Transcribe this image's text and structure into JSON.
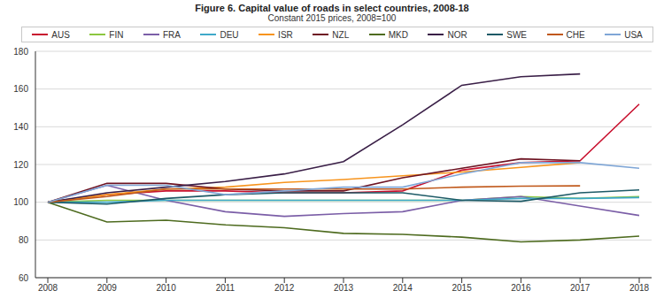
{
  "chart_data": {
    "type": "line",
    "title": "Figure 6. Capital value of roads in select countries, 2008-18",
    "subtitle": "Constant 2015 prices, 2008=100",
    "categories": [
      "2008",
      "2009",
      "2010",
      "2011",
      "2012",
      "2013",
      "2014",
      "2015",
      "2016",
      "2017",
      "2018"
    ],
    "series": [
      {
        "name": "AUS",
        "color": "#c8102e",
        "values": [
          100,
          104,
          106,
          106,
          105,
          105,
          106,
          117,
          121,
          122,
          152
        ]
      },
      {
        "name": "FIN",
        "color": "#8cc63f",
        "values": [
          100,
          101,
          101,
          101,
          101,
          101,
          101,
          101,
          103,
          102,
          103
        ]
      },
      {
        "name": "FRA",
        "color": "#7b5ea7",
        "values": [
          100,
          109,
          101,
          95,
          92.5,
          94,
          95,
          101,
          103,
          98,
          93
        ]
      },
      {
        "name": "DEU",
        "color": "#3fa9c9",
        "values": [
          100,
          100,
          101,
          101,
          101,
          101,
          101,
          101,
          102,
          102,
          102.5
        ]
      },
      {
        "name": "ISR",
        "color": "#f7941d",
        "values": [
          100,
          104,
          107,
          108,
          110.5,
          112,
          114,
          116,
          118.5,
          121,
          null
        ]
      },
      {
        "name": "NZL",
        "color": "#6e1423",
        "values": [
          100,
          110,
          110,
          107,
          106,
          106,
          113,
          118,
          123,
          122,
          null
        ]
      },
      {
        "name": "MKD",
        "color": "#4e6b1f",
        "values": [
          100,
          89.5,
          90.5,
          88,
          86.5,
          83.5,
          83,
          81.5,
          79,
          80,
          82
        ]
      },
      {
        "name": "NOR",
        "color": "#3a1f47",
        "values": [
          100,
          105,
          108,
          111,
          115,
          121.5,
          141,
          162,
          166.5,
          168,
          null
        ]
      },
      {
        "name": "SWE",
        "color": "#1d5a66",
        "values": [
          100,
          99,
          102,
          104,
          105,
          105,
          105,
          101,
          100.5,
          105,
          106.5
        ]
      },
      {
        "name": "CHE",
        "color": "#c0581a",
        "values": [
          100,
          103,
          107,
          107,
          107,
          107,
          107,
          108,
          108.5,
          108.7,
          null
        ]
      },
      {
        "name": "USA",
        "color": "#7fa6d6",
        "values": [
          100,
          109,
          109,
          104,
          106,
          108,
          108,
          115,
          121,
          121,
          118
        ]
      }
    ],
    "ylim": [
      60,
      180
    ],
    "yticks": [
      60,
      80,
      100,
      120,
      140,
      160,
      180
    ],
    "grid": true,
    "legend": "top"
  }
}
